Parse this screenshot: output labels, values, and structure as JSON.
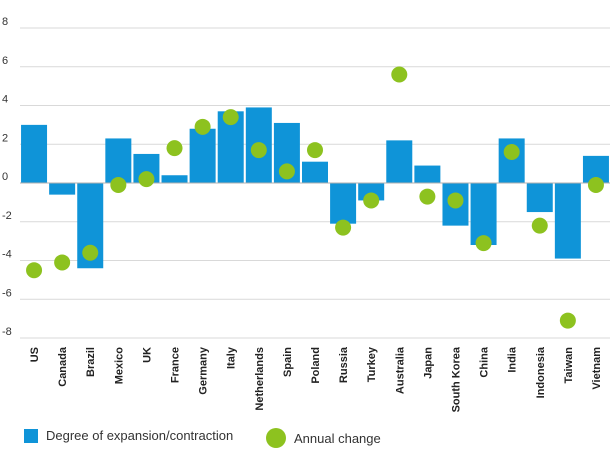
{
  "chart_data": {
    "type": "bar",
    "categories": [
      "US",
      "Canada",
      "Brazil",
      "Mexico",
      "UK",
      "France",
      "Germany",
      "Italy",
      "Netherlands",
      "Spain",
      "Poland",
      "Russia",
      "Turkey",
      "Australia",
      "Japan",
      "South Korea",
      "China",
      "India",
      "Indonesia",
      "Taiwan",
      "Vietnam"
    ],
    "series": [
      {
        "name": "Degree of expansion/contraction",
        "type": "bar",
        "color": "#0f94d8",
        "values": [
          3.0,
          -0.6,
          -4.4,
          2.3,
          1.5,
          0.4,
          2.8,
          3.7,
          3.9,
          3.1,
          1.1,
          -2.1,
          -0.9,
          2.2,
          0.9,
          -2.2,
          -3.2,
          2.3,
          -1.5,
          -3.9,
          1.4
        ]
      },
      {
        "name": "Annual change",
        "type": "scatter",
        "color": "#8dc21f",
        "values": [
          -4.5,
          -4.1,
          -3.6,
          -0.1,
          0.2,
          1.8,
          2.9,
          3.4,
          1.7,
          0.6,
          1.7,
          -2.3,
          -0.9,
          5.6,
          -0.7,
          -0.9,
          -3.1,
          1.6,
          -2.2,
          -7.1,
          -0.1
        ]
      }
    ],
    "yticks": [
      "8",
      "6",
      "4",
      "2",
      "0",
      "-2",
      "-4",
      "-6",
      "-8"
    ],
    "ylim": [
      -8,
      8
    ],
    "grid": true,
    "legend_position": "bottom"
  }
}
